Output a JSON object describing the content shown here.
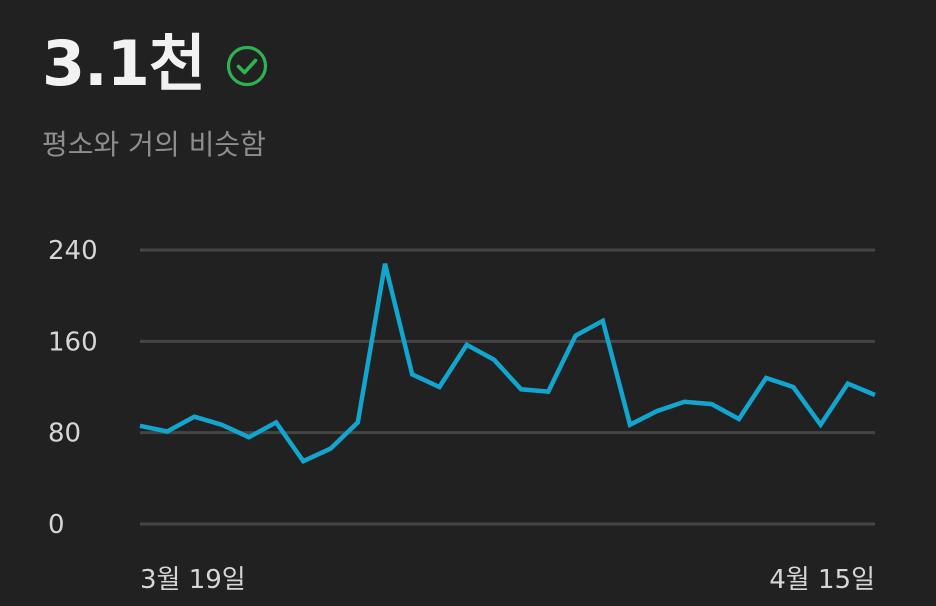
{
  "header": {
    "value": "3.1천",
    "status_icon": "check-circle-icon",
    "subtitle": "평소와 거의 비슷함"
  },
  "colors": {
    "line": "#12a5cd",
    "check": "#2eb352",
    "grid": "#454545"
  },
  "chart_data": {
    "type": "line",
    "xlabel": "",
    "ylabel": "",
    "ylim": [
      0,
      240
    ],
    "yticks": [
      0,
      80,
      160,
      240
    ],
    "ytick_labels": [
      "0",
      "80",
      "160",
      "240"
    ],
    "xtick_labels": [
      "3월 19일",
      "4월 15일"
    ],
    "grid": true,
    "series": [
      {
        "values": [
          86,
          81,
          94,
          87,
          76,
          89,
          55,
          66,
          89,
          228,
          131,
          120,
          157,
          144,
          118,
          116,
          165,
          178,
          87,
          99,
          107,
          105,
          92,
          128,
          120,
          87,
          123,
          113
        ]
      }
    ]
  }
}
